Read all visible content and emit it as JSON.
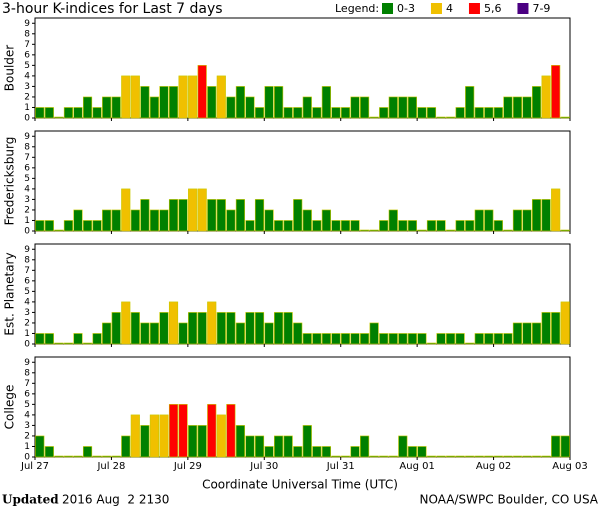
{
  "chart_data": {
    "type": "bar",
    "title": "3-hour K-indices for Last 7 days",
    "legend_title": "Legend:",
    "legend": [
      {
        "label": "0-3",
        "color": "#008000",
        "range": [
          0,
          3
        ]
      },
      {
        "label": "4",
        "color": "#f0c000",
        "range": [
          4,
          4
        ]
      },
      {
        "label": "5,6",
        "color": "#ff0000",
        "range": [
          5,
          6
        ]
      },
      {
        "label": "7-9",
        "color": "#4b0082",
        "range": [
          7,
          9
        ]
      }
    ],
    "xticks": [
      "Jul 27",
      "Jul 28",
      "Jul 29",
      "Jul 30",
      "Jul 31",
      "Aug 01",
      "Aug 02",
      "Aug 03"
    ],
    "xlabel": "Coordinate Universal Time (UTC)",
    "ylim": [
      0,
      9.5
    ],
    "yticks": [
      0,
      1,
      2,
      3,
      4,
      5,
      6,
      7,
      8,
      9
    ],
    "panels": [
      {
        "name": "Boulder",
        "values": [
          1,
          1,
          0,
          1,
          1,
          2,
          1,
          2,
          2,
          4,
          4,
          3,
          2,
          3,
          3,
          4,
          4,
          5,
          3,
          4,
          2,
          3,
          2,
          1,
          3,
          3,
          1,
          1,
          2,
          1,
          3,
          1,
          1,
          2,
          2,
          0,
          1,
          2,
          2,
          2,
          1,
          1,
          0,
          0,
          1,
          3,
          1,
          1,
          1,
          2,
          2,
          2,
          3,
          4,
          5,
          0
        ]
      },
      {
        "name": "Fredericksburg",
        "values": [
          1,
          1,
          0,
          1,
          2,
          1,
          1,
          2,
          2,
          4,
          2,
          3,
          2,
          2,
          3,
          3,
          4,
          4,
          3,
          3,
          2,
          3,
          1,
          3,
          2,
          1,
          1,
          3,
          2,
          1,
          2,
          1,
          1,
          1,
          0,
          0,
          1,
          2,
          1,
          1,
          0,
          1,
          1,
          0,
          1,
          1,
          2,
          2,
          1,
          0,
          2,
          2,
          3,
          3,
          4,
          0
        ]
      },
      {
        "name": "Est. Planetary",
        "values": [
          1,
          1,
          0,
          0,
          1,
          0,
          1,
          2,
          3,
          4,
          3,
          2,
          2,
          3,
          4,
          2,
          3,
          3,
          4,
          3,
          3,
          2,
          3,
          3,
          2,
          3,
          3,
          2,
          1,
          1,
          1,
          1,
          1,
          1,
          1,
          2,
          1,
          1,
          1,
          1,
          1,
          0,
          1,
          1,
          1,
          0,
          1,
          1,
          1,
          1,
          2,
          2,
          2,
          3,
          3,
          4
        ]
      },
      {
        "name": "College",
        "values": [
          2,
          1,
          0,
          0,
          0,
          1,
          0,
          0,
          0,
          2,
          4,
          3,
          4,
          4,
          5,
          5,
          3,
          3,
          5,
          4,
          5,
          3,
          2,
          2,
          1,
          2,
          2,
          1,
          3,
          1,
          1,
          0,
          0,
          1,
          2,
          0,
          0,
          0,
          2,
          1,
          1,
          0,
          0,
          0,
          0,
          0,
          0,
          0,
          0,
          0,
          0,
          0,
          0,
          0,
          2,
          2
        ]
      }
    ],
    "footer_label": "Updated",
    "footer_date": "2016 Aug  2 2130",
    "footer_source": "NOAA/SWPC Boulder, CO USA"
  }
}
